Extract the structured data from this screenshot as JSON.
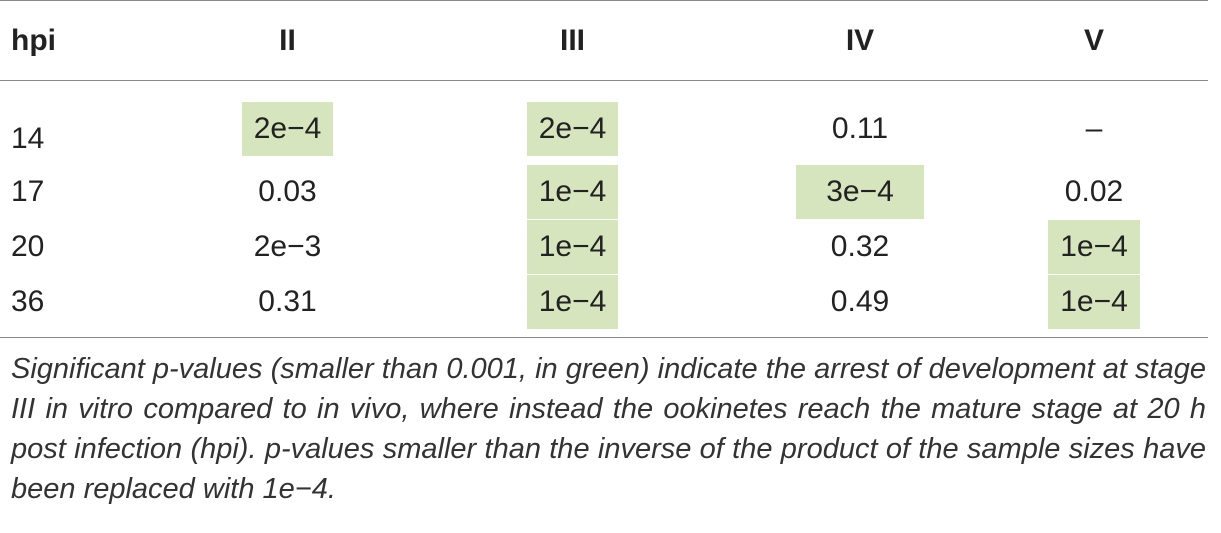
{
  "table": {
    "columns": [
      "hpi",
      "II",
      "III",
      "IV",
      "V"
    ],
    "rows": [
      {
        "hpi": "14",
        "cells": [
          {
            "value": "2e−4",
            "significant": true
          },
          {
            "value": "2e−4",
            "significant": true
          },
          {
            "value": "0.11",
            "significant": false
          },
          {
            "value": "–",
            "significant": false
          }
        ]
      },
      {
        "hpi": "17",
        "cells": [
          {
            "value": "0.03",
            "significant": false
          },
          {
            "value": "1e−4",
            "significant": true
          },
          {
            "value": "3e−4",
            "significant": true
          },
          {
            "value": "0.02",
            "significant": false
          }
        ]
      },
      {
        "hpi": "20",
        "cells": [
          {
            "value": "2e−3",
            "significant": false
          },
          {
            "value": "1e−4",
            "significant": true
          },
          {
            "value": "0.32",
            "significant": false
          },
          {
            "value": "1e−4",
            "significant": true
          }
        ]
      },
      {
        "hpi": "36",
        "cells": [
          {
            "value": "0.31",
            "significant": false
          },
          {
            "value": "1e−4",
            "significant": true
          },
          {
            "value": "0.49",
            "significant": false
          },
          {
            "value": "1e−4",
            "significant": true
          }
        ]
      }
    ]
  },
  "colors": {
    "significant_highlight": "#d6e5bd",
    "rule": "#8a8a8a",
    "text": "#222222"
  },
  "footnote": "Significant p-values (smaller than 0.001, in green) indicate the arrest of development at stage III in vitro compared to in vivo, where instead the ookinetes reach the mature stage at 20 h post infection (hpi). p-values smaller than the inverse of the product of the sample sizes have been replaced with 1e−4."
}
